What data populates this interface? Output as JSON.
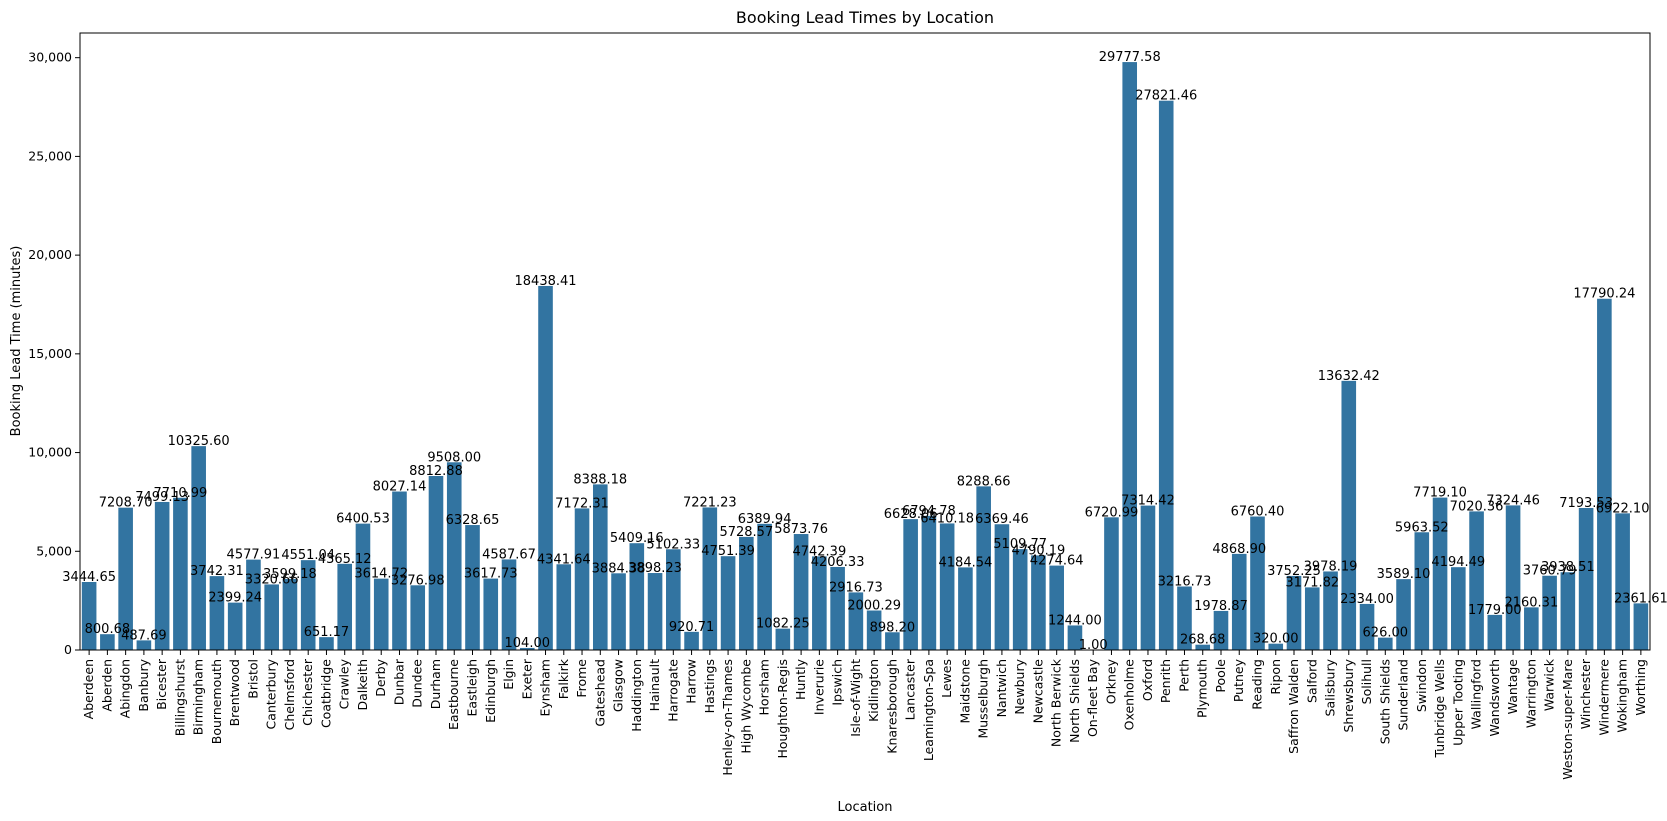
{
  "chart_data": {
    "type": "bar",
    "title": "Booking Lead Times by Location",
    "xlabel": "Location",
    "ylabel": "Booking Lead Time (minutes)",
    "ylim": [
      0,
      31250
    ],
    "yticks": [
      0,
      5000,
      10000,
      15000,
      20000,
      25000,
      30000
    ],
    "ytick_labels": [
      "0",
      "5,000",
      "10,000",
      "15,000",
      "20,000",
      "25,000",
      "30,000"
    ],
    "bar_color": "#3274a1",
    "grid": false,
    "legend": "none",
    "categories": [
      "Aberdeen",
      "Aberden",
      "Abingdon",
      "Banbury",
      "Bicester",
      "Billingshurst",
      "Birmingham",
      "Bournemouth",
      "Brentwood",
      "Bristol",
      "Canterbury",
      "Chelmsford",
      "Chichester",
      "Coatbridge",
      "Crawley",
      "Dalkeith",
      "Derby",
      "Dunbar",
      "Dundee",
      "Durham",
      "Eastbourne",
      "Eastleigh",
      "Edinburgh",
      "Elgin",
      "Exeter",
      "Eynsham",
      "Falkirk",
      "Frome",
      "Gateshead",
      "Glasgow",
      "Haddington",
      "Hainault",
      "Harrogate",
      "Harrow",
      "Hastings",
      "Henley-on-Thames",
      "High Wycombe",
      "Horsham",
      "Houghton-Regis",
      "Huntly",
      "Inverurie",
      "Ipswich",
      "Isle-of-Wight",
      "Kidlington",
      "Knaresborough",
      "Lancaster",
      "Leamington-Spa",
      "Lewes",
      "Maidstone",
      "Musselburgh",
      "Nantwich",
      "Newbury",
      "Newcastle",
      "North Berwick",
      "North Shields",
      "On-fleet Bay",
      "Orkney",
      "Oxenholme",
      "Oxford",
      "Penrith",
      "Perth",
      "Plymouth",
      "Poole",
      "Putney",
      "Reading",
      "Ripon",
      "Saffron Walden",
      "Salford",
      "Salisbury",
      "Shrewsbury",
      "Solihull",
      "South Shields",
      "Sunderland",
      "Swindon",
      "Tunbridge Wells",
      "Upper Tooting",
      "Wallingford",
      "Wandsworth",
      "Wantage",
      "Warrington",
      "Warwick",
      "Weston-super-Mare",
      "Winchester",
      "Windermere",
      "Wokingham",
      "Worthing"
    ],
    "values": [
      3444.65,
      800.68,
      7208.7,
      487.69,
      7499.13,
      7710.99,
      10325.6,
      3742.31,
      2399.24,
      4577.91,
      3320.66,
      3599.18,
      4551.04,
      651.17,
      4365.12,
      6400.53,
      3614.72,
      8027.14,
      3276.98,
      8812.88,
      9508.0,
      6328.65,
      3617.73,
      4587.67,
      104.0,
      18438.41,
      4341.64,
      7172.31,
      8388.18,
      3884.38,
      5409.16,
      3898.23,
      5102.33,
      920.71,
      7221.23,
      4751.39,
      5728.57,
      6389.94,
      1082.25,
      5873.76,
      4742.39,
      4206.33,
      2916.73,
      2000.29,
      898.2,
      6628.06,
      6794.78,
      6410.18,
      4184.54,
      8288.66,
      6369.46,
      5109.77,
      4790.19,
      4274.64,
      1244.0,
      1.0,
      6720.99,
      29777.58,
      7314.42,
      27821.46,
      3216.73,
      268.68,
      1978.87,
      4868.9,
      6760.4,
      320.0,
      3752.25,
      3171.82,
      3978.19,
      13632.42,
      2334.0,
      626.0,
      3589.1,
      5963.52,
      7719.1,
      4194.49,
      7020.36,
      1779.0,
      7324.46,
      2160.31,
      3760.79,
      3938.51,
      7193.53,
      17790.24,
      6922.1,
      2361.61
    ],
    "data_labels": [
      "3444.65",
      "800.68",
      "7208.70",
      "487.69",
      "7499.13",
      "7710.99",
      "10325.60",
      "3742.31",
      "2399.24",
      "4577.91",
      "3320.66",
      "3599.18",
      "4551.04",
      "651.17",
      "4365.12",
      "6400.53",
      "3614.72",
      "8027.14",
      "3276.98",
      "8812.88",
      "9508.00",
      "6328.65",
      "3617.73",
      "4587.67",
      "104.00",
      "18438.41",
      "4341.64",
      "7172.31",
      "8388.18",
      "3884.38",
      "5409.16",
      "3898.23",
      "5102.33",
      "920.71",
      "7221.23",
      "4751.39",
      "5728.57",
      "6389.94",
      "1082.25",
      "5873.76",
      "4742.39",
      "4206.33",
      "2916.73",
      "2000.29",
      "898.20",
      "6628.06",
      "6794.78",
      "6410.18",
      "4184.54",
      "8288.66",
      "6369.46",
      "5109.77",
      "4790.19",
      "4274.64",
      "1244.00",
      "1.00",
      "6720.99",
      "29777.58",
      "7314.42",
      "27821.46",
      "3216.73",
      "268.68",
      "1978.87",
      "4868.90",
      "6760.40",
      "320.00",
      "3752.25",
      "3171.82",
      "3978.19",
      "13632.42",
      "2334.00",
      "626.00",
      "3589.10",
      "5963.52",
      "7719.10",
      "4194.49",
      "7020.36",
      "1779.00",
      "7324.46",
      "2160.31",
      "3760.79",
      "3938.51",
      "7193.53",
      "17790.24",
      "6922.10",
      "2361.61"
    ]
  }
}
